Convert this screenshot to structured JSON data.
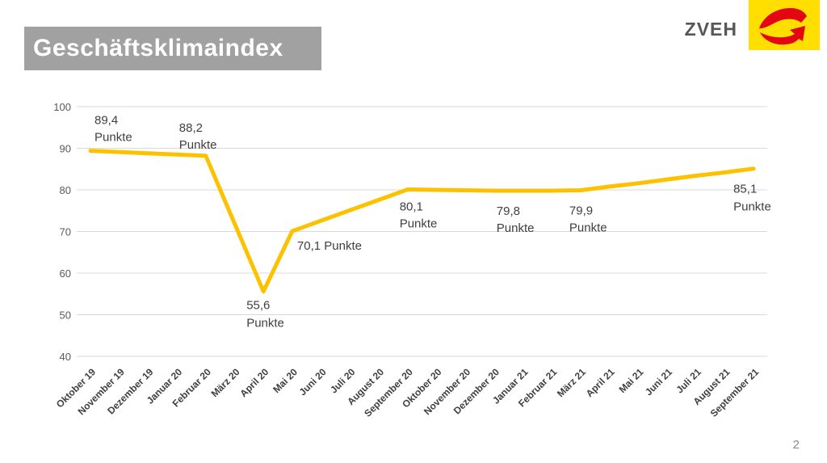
{
  "slide": {
    "title": "Geschäftsklimaindex",
    "logo_text": "ZVEH",
    "page_number": "2"
  },
  "colors": {
    "accent_line": "#FCC200",
    "title_bar_bg": "#A1A1A1",
    "grid": "#D9D9D9",
    "y_axis_text": "#595959",
    "x_axis_text": "#3F3F3F",
    "data_label_text": "#3F3F3F",
    "logo_yellow": "#FFDE00",
    "logo_red": "#E30613"
  },
  "chart_data": {
    "type": "line",
    "title": "Geschäftsklimaindex",
    "categories": [
      "Oktober 19",
      "November 19",
      "Dezember 19",
      "Januar 20",
      "Februar 20",
      "März 20",
      "April 20",
      "Mai 20",
      "Juni 20",
      "Juli 20",
      "August 20",
      "September 20",
      "Oktober 20",
      "November 20",
      "Dezember 20",
      "Januar 21",
      "Februar 21",
      "März 21",
      "April 21",
      "Mai 21",
      "Juni 21",
      "Juli 21",
      "August 21",
      "September 21"
    ],
    "values": [
      89.4,
      89.1,
      88.8,
      88.5,
      88.2,
      71.9,
      55.6,
      70.1,
      72.6,
      75.1,
      77.6,
      80.1,
      80.0,
      79.9,
      79.8,
      79.8,
      79.8,
      79.9,
      80.8,
      81.6,
      82.5,
      83.4,
      84.2,
      85.1
    ],
    "ylim": [
      40,
      100
    ],
    "yticks": [
      100,
      90,
      80,
      70,
      60,
      50,
      40
    ],
    "grid": true,
    "legend": false,
    "point_labels": [
      {
        "index": 0,
        "lines": [
          "89,4",
          "Punkte"
        ]
      },
      {
        "index": 4,
        "lines": [
          "88,2",
          "Punkte"
        ]
      },
      {
        "index": 6,
        "lines": [
          "55,6",
          "Punkte"
        ]
      },
      {
        "index": 7,
        "lines": [
          "70,1 Punkte"
        ]
      },
      {
        "index": 11,
        "lines": [
          "80,1",
          "Punkte"
        ]
      },
      {
        "index": 14,
        "lines": [
          "79,8",
          "Punkte"
        ]
      },
      {
        "index": 17,
        "lines": [
          "79,9",
          "Punkte"
        ]
      },
      {
        "index": 23,
        "lines": [
          "85,1",
          "Punkte"
        ]
      }
    ]
  }
}
